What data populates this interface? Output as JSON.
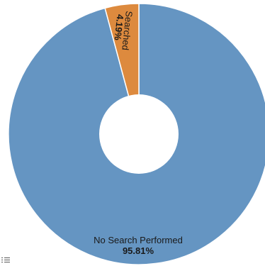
{
  "chart_data": {
    "type": "pie",
    "donut": true,
    "title": "",
    "slices": [
      {
        "label": "No Search Performed",
        "value": 95.81,
        "display": "95.81%",
        "color": "#6595c2"
      },
      {
        "label": "Searched",
        "value": 4.19,
        "display": "4.19%",
        "color": "#dd8a3e"
      }
    ]
  },
  "legend_toggle": {
    "icon": "list-icon"
  }
}
